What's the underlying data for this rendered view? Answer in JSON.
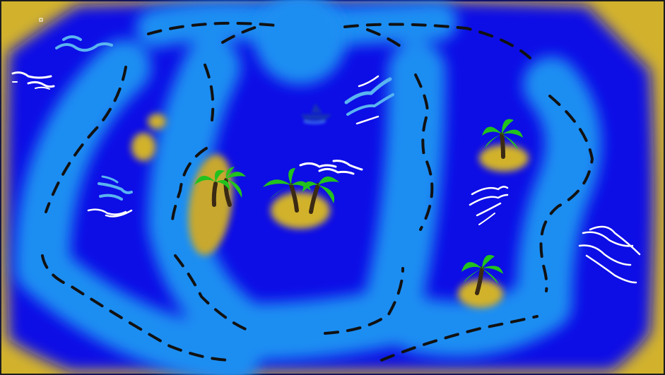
{
  "map": {
    "colors": {
      "frame": "#1e1e1e",
      "sand": "#d2b22c",
      "deep_water": "#0a10e6",
      "shallow_water": "#1e8ef2",
      "route_dash": "#111111",
      "palm_leaf": "#22c21e",
      "palm_trunk": "#3a2a14",
      "wave_white": "#ffffff",
      "wave_light": "#5ab4f0",
      "ship": "#1432b4"
    },
    "features": {
      "palm_islands": 4,
      "sandbars": 2,
      "wave_clusters": 6,
      "ships": 1,
      "dashed_routes": 5
    }
  }
}
